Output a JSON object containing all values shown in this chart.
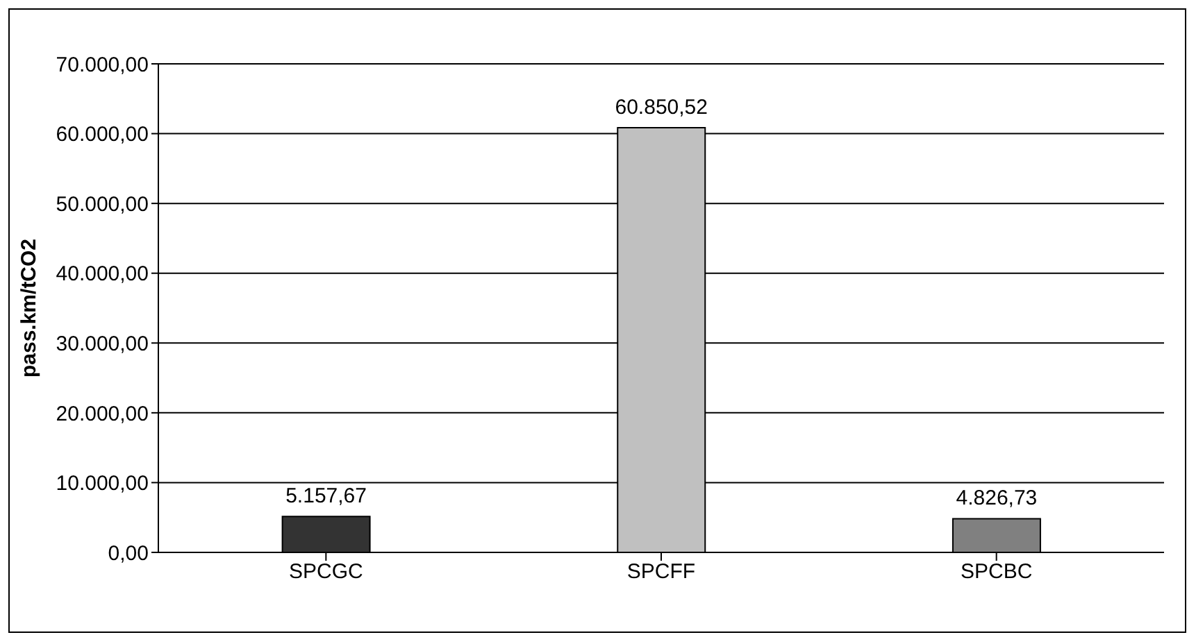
{
  "chart_data": {
    "type": "bar",
    "ylabel": "pass.km/tCO2",
    "categories": [
      "SPCGC",
      "SPCFF",
      "SPCBC"
    ],
    "values": [
      5157.67,
      60850.52,
      4826.73
    ],
    "colors": [
      "#333333",
      "#c0c0c0",
      "#808080"
    ],
    "value_labels": [
      "5.157,67",
      "60.850,52",
      "4.826,73"
    ],
    "ylim": [
      0,
      70000
    ],
    "yticks": [
      {
        "value": 0,
        "label": "0,00"
      },
      {
        "value": 10000,
        "label": "10.000,00"
      },
      {
        "value": 20000,
        "label": "20.000,00"
      },
      {
        "value": 30000,
        "label": "30.000,00"
      },
      {
        "value": 40000,
        "label": "40.000,00"
      },
      {
        "value": 50000,
        "label": "50.000,00"
      },
      {
        "value": 60000,
        "label": "60.000,00"
      },
      {
        "value": 70000,
        "label": "70.000,00"
      }
    ],
    "grid": "y",
    "legend": false
  }
}
